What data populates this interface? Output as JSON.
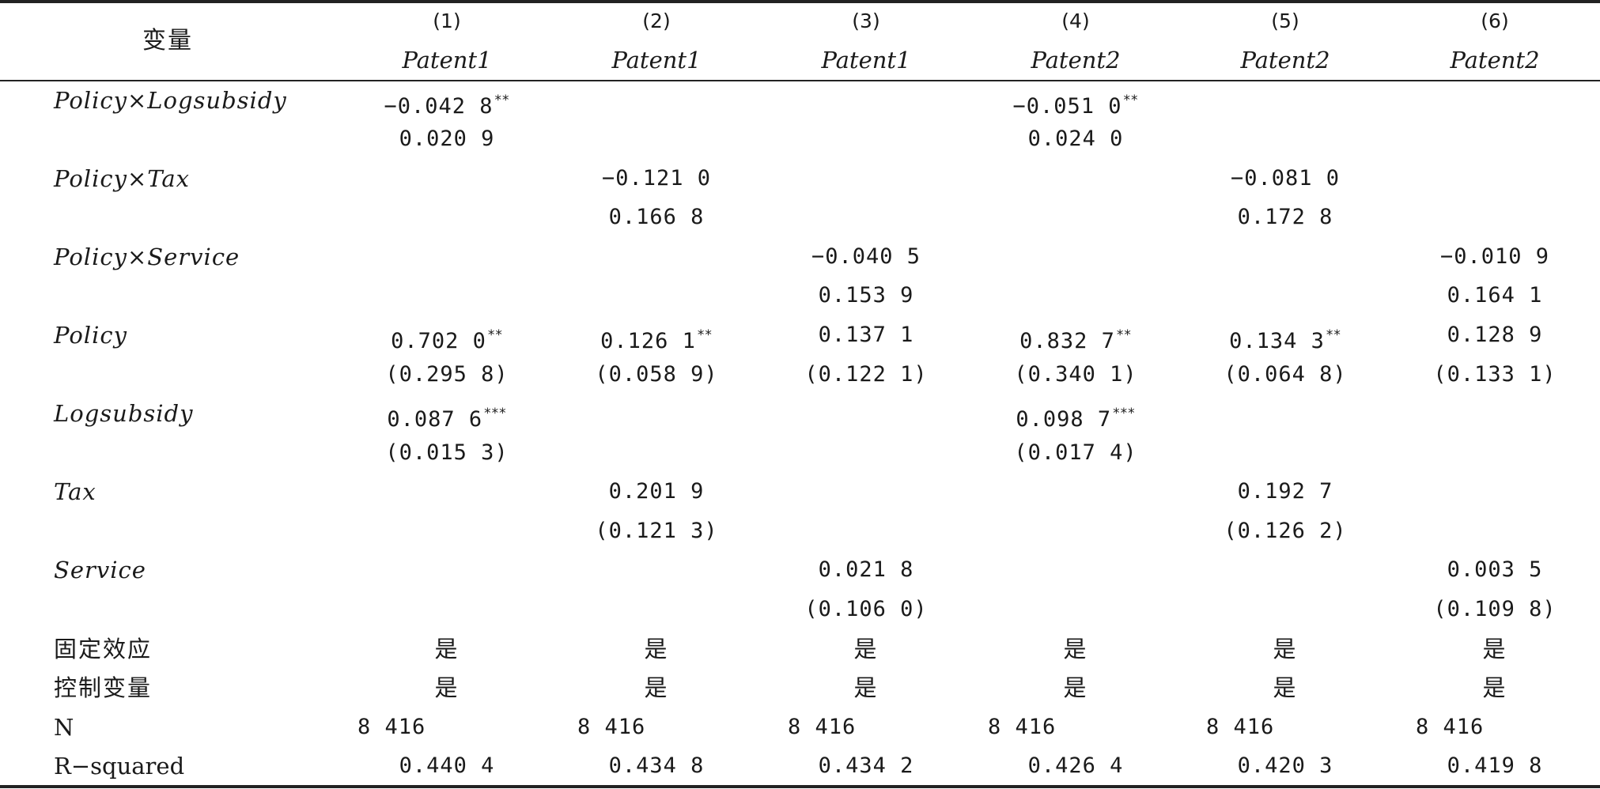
{
  "table": {
    "variable_header": "变量",
    "columns": [
      {
        "num": "(1)",
        "dep": "Patent1"
      },
      {
        "num": "(2)",
        "dep": "Patent1"
      },
      {
        "num": "(3)",
        "dep": "Patent1"
      },
      {
        "num": "(4)",
        "dep": "Patent2"
      },
      {
        "num": "(5)",
        "dep": "Patent2"
      },
      {
        "num": "(6)",
        "dep": "Patent2"
      }
    ],
    "rows": {
      "r01": {
        "label": "Policy×Logsubsidy",
        "c1": "−0.042 8",
        "c1s": "**",
        "c4": "−0.051 0",
        "c4s": "**"
      },
      "r02": {
        "c1": "0.020 9",
        "c4": "0.024 0"
      },
      "r03": {
        "label": "Policy×Tax",
        "c2": "−0.121 0",
        "c5": "−0.081 0"
      },
      "r04": {
        "c2": "0.166 8",
        "c5": "0.172 8"
      },
      "r05": {
        "label": "Policy×Service",
        "c3": "−0.040 5",
        "c6": "−0.010 9"
      },
      "r06": {
        "c3": "0.153 9",
        "c6": "0.164 1"
      },
      "r07": {
        "label": "Policy",
        "c1": "0.702 0",
        "c1s": "**",
        "c2": "0.126 1",
        "c2s": "**",
        "c3": "0.137 1",
        "c4": "0.832 7",
        "c4s": "**",
        "c5": "0.134 3",
        "c5s": "**",
        "c6": "0.128 9"
      },
      "r08": {
        "c1": "(0.295 8)",
        "c2": "(0.058 9)",
        "c3": "(0.122 1)",
        "c4": "(0.340 1)",
        "c5": "(0.064 8)",
        "c6": "(0.133 1)"
      },
      "r09": {
        "label": "Logsubsidy",
        "c1": "0.087 6",
        "c1s": "***",
        "c4": "0.098 7",
        "c4s": "***"
      },
      "r10": {
        "c1": "(0.015 3)",
        "c4": "(0.017 4)"
      },
      "r11": {
        "label": "Tax",
        "c2": "0.201 9",
        "c5": "0.192 7"
      },
      "r12": {
        "c2": "(0.121 3)",
        "c5": "(0.126 2)"
      },
      "r13": {
        "label": "Service",
        "c3": "0.021 8",
        "c6": "0.003 5"
      },
      "r14": {
        "c3": "(0.106 0)",
        "c6": "(0.109 8)"
      },
      "r15": {
        "label": "固定效应",
        "c1": "是",
        "c2": "是",
        "c3": "是",
        "c4": "是",
        "c5": "是",
        "c6": "是"
      },
      "r16": {
        "label": "控制变量",
        "c1": "是",
        "c2": "是",
        "c3": "是",
        "c4": "是",
        "c5": "是",
        "c6": "是"
      },
      "r17": {
        "label": "N",
        "c1": "8 416",
        "c2": "8 416",
        "c3": "8 416",
        "c4": "8 416",
        "c5": "8 416",
        "c6": "8 416"
      },
      "r18": {
        "label": "R−squared",
        "c1": "0.440 4",
        "c2": "0.434 8",
        "c3": "0.434 2",
        "c4": "0.426 4",
        "c5": "0.420 3",
        "c6": "0.419 8"
      }
    }
  }
}
